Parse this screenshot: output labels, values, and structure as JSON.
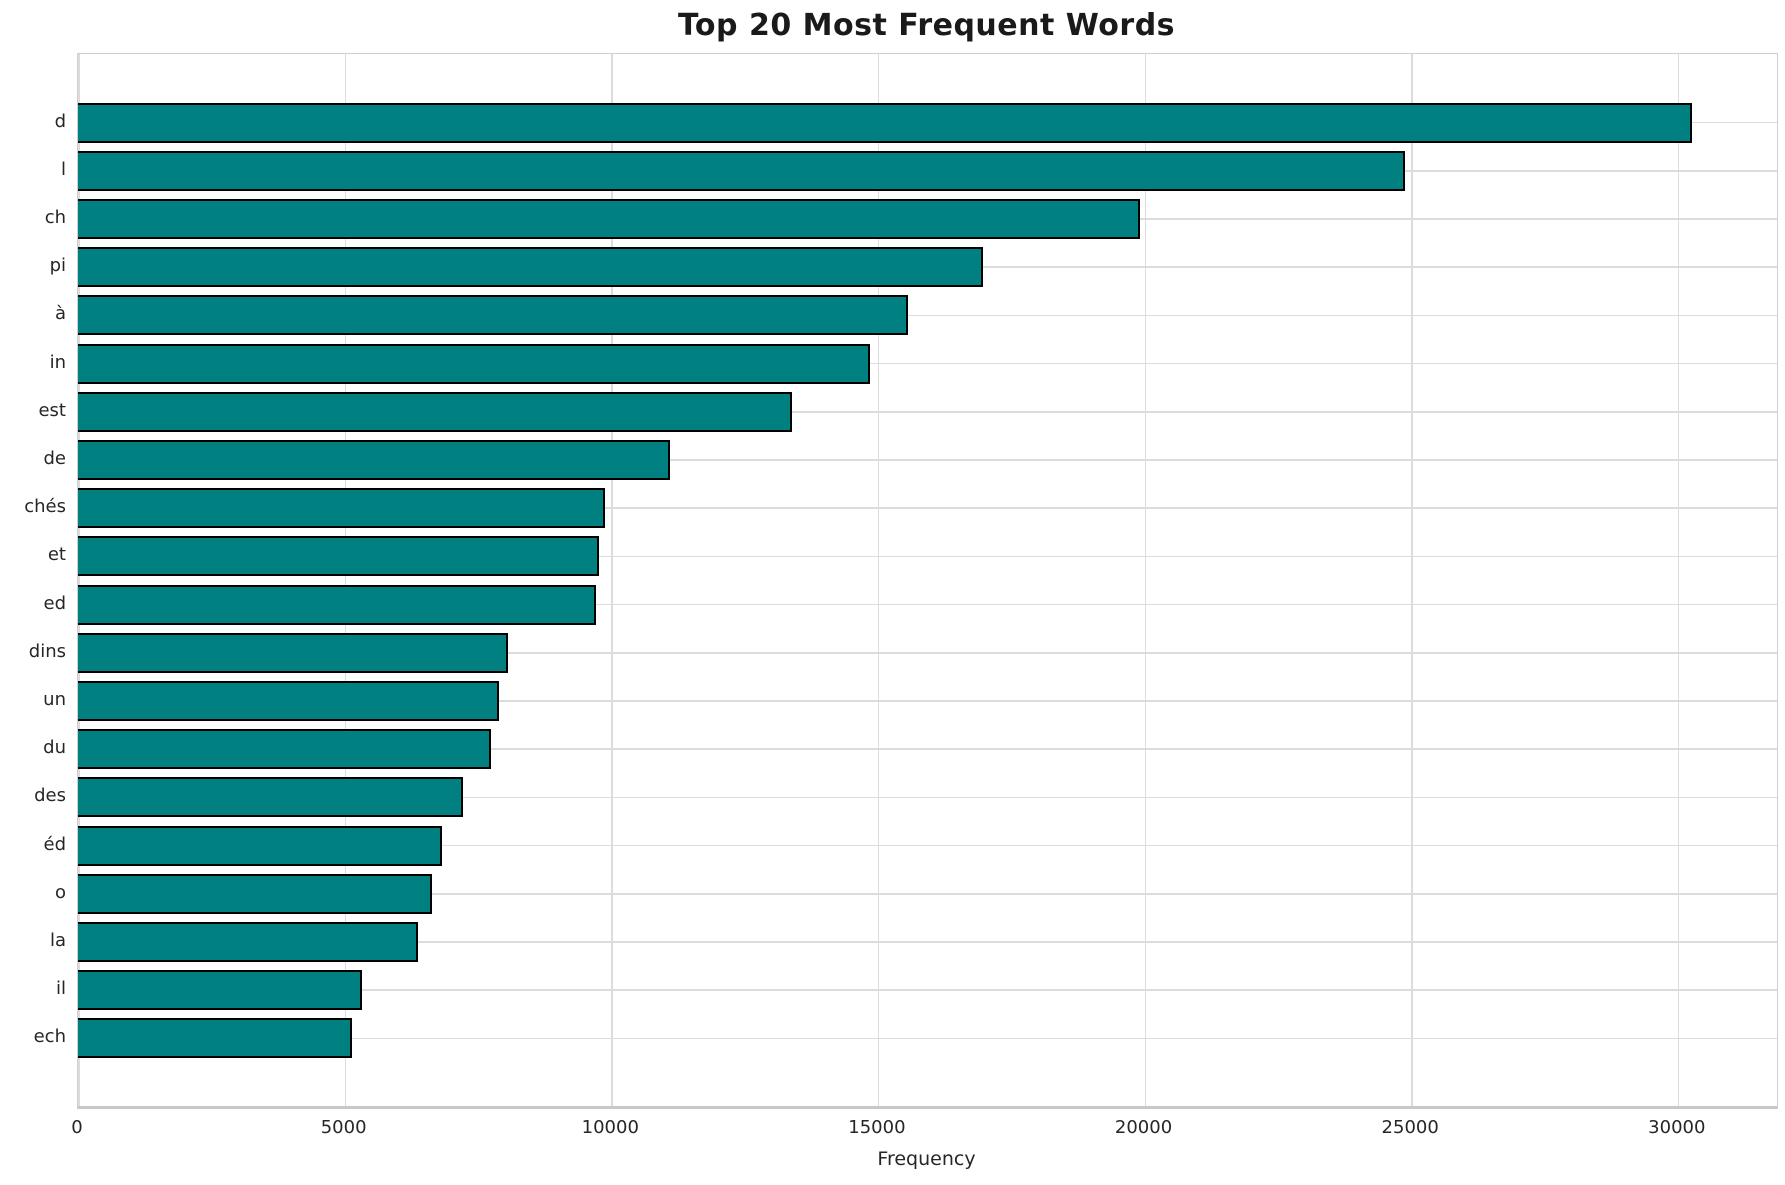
{
  "chart_data": {
    "type": "bar",
    "orientation": "horizontal",
    "title": "Top 20 Most Frequent Words",
    "xlabel": "Frequency",
    "ylabel": "",
    "categories": [
      "d",
      "l",
      "ch",
      "pi",
      "à",
      "in",
      "est",
      "de",
      "chés",
      "et",
      "ed",
      "dins",
      "un",
      "du",
      "des",
      "éd",
      "o",
      "la",
      "il",
      "ech"
    ],
    "values": [
      30260,
      24890,
      19920,
      16970,
      15560,
      14860,
      13380,
      11110,
      9880,
      9770,
      9720,
      8060,
      7890,
      7745,
      7220,
      6825,
      6640,
      6375,
      5325,
      5135
    ],
    "xlim": [
      0,
      31860
    ],
    "xticks": [
      0,
      5000,
      10000,
      15000,
      20000,
      25000,
      30000
    ],
    "grid": true,
    "legend": "none",
    "bar_color": "#008080",
    "bar_edge_color": "#000000",
    "grid_color": "#dcdcdc",
    "background_color": "#ffffff"
  }
}
